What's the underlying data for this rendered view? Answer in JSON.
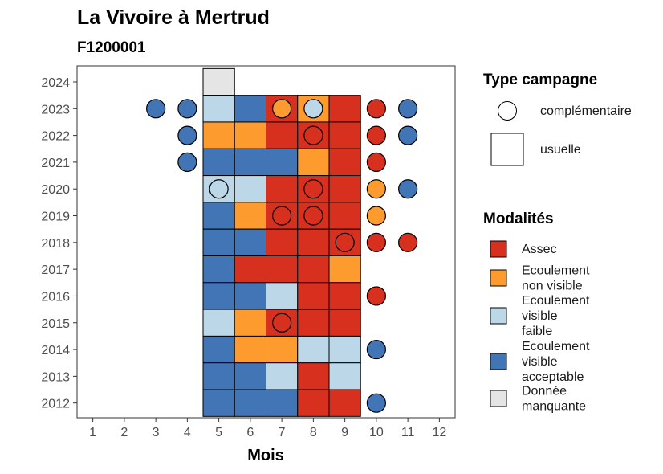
{
  "chart_data": {
    "type": "heatmap",
    "title": "La Vivoire à Mertrud",
    "subtitle": "F1200001",
    "xlabel": "Mois",
    "ylabel": "",
    "x_ticks": [
      1,
      2,
      3,
      4,
      5,
      6,
      7,
      8,
      9,
      10,
      11,
      12
    ],
    "y_ticks": [
      2012,
      2013,
      2014,
      2015,
      2016,
      2017,
      2018,
      2019,
      2020,
      2021,
      2022,
      2023,
      2024
    ],
    "xlim": [
      0.5,
      12.5
    ],
    "ylim": [
      2011.45,
      2024.6
    ],
    "grid": false,
    "colors": {
      "Assec": "#d7301f",
      "Ecoulement non visible": "#fd9b2f",
      "Ecoulement visible faible": "#bcd7e8",
      "Ecoulement visible acceptable": "#4275b6",
      "Donnée manquante": "#e5e5e5"
    },
    "legend_shape": {
      "title": "Type campagne",
      "items": [
        {
          "label": "complémentaire",
          "shape": "circle"
        },
        {
          "label": "usuelle",
          "shape": "square"
        }
      ]
    },
    "legend_color": {
      "title": "Modalités",
      "items": [
        {
          "key": "Assec",
          "lines": [
            "Assec"
          ]
        },
        {
          "key": "Ecoulement non visible",
          "lines": [
            "Ecoulement",
            "non visible"
          ]
        },
        {
          "key": "Ecoulement visible faible",
          "lines": [
            "Ecoulement",
            "visible",
            "faible"
          ]
        },
        {
          "key": "Ecoulement visible acceptable",
          "lines": [
            "Ecoulement",
            "visible",
            "acceptable"
          ]
        },
        {
          "key": "Donnée manquante",
          "lines": [
            "Donnée",
            "manquante"
          ]
        }
      ]
    },
    "usuelle": [
      {
        "year": 2024,
        "month": 5,
        "value": "Donnée manquante"
      },
      {
        "year": 2023,
        "month": 5,
        "value": "Ecoulement visible faible"
      },
      {
        "year": 2023,
        "month": 6,
        "value": "Ecoulement visible acceptable"
      },
      {
        "year": 2023,
        "month": 7,
        "value": "Assec"
      },
      {
        "year": 2023,
        "month": 8,
        "value": "Ecoulement non visible"
      },
      {
        "year": 2023,
        "month": 9,
        "value": "Assec"
      },
      {
        "year": 2022,
        "month": 5,
        "value": "Ecoulement non visible"
      },
      {
        "year": 2022,
        "month": 6,
        "value": "Ecoulement non visible"
      },
      {
        "year": 2022,
        "month": 7,
        "value": "Assec"
      },
      {
        "year": 2022,
        "month": 8,
        "value": "Assec"
      },
      {
        "year": 2022,
        "month": 9,
        "value": "Assec"
      },
      {
        "year": 2021,
        "month": 5,
        "value": "Ecoulement visible acceptable"
      },
      {
        "year": 2021,
        "month": 6,
        "value": "Ecoulement visible acceptable"
      },
      {
        "year": 2021,
        "month": 7,
        "value": "Ecoulement visible acceptable"
      },
      {
        "year": 2021,
        "month": 8,
        "value": "Ecoulement non visible"
      },
      {
        "year": 2021,
        "month": 9,
        "value": "Assec"
      },
      {
        "year": 2020,
        "month": 5,
        "value": "Ecoulement visible faible"
      },
      {
        "year": 2020,
        "month": 6,
        "value": "Ecoulement visible faible"
      },
      {
        "year": 2020,
        "month": 7,
        "value": "Assec"
      },
      {
        "year": 2020,
        "month": 8,
        "value": "Assec"
      },
      {
        "year": 2020,
        "month": 9,
        "value": "Assec"
      },
      {
        "year": 2019,
        "month": 5,
        "value": "Ecoulement visible acceptable"
      },
      {
        "year": 2019,
        "month": 6,
        "value": "Ecoulement non visible"
      },
      {
        "year": 2019,
        "month": 7,
        "value": "Assec"
      },
      {
        "year": 2019,
        "month": 8,
        "value": "Assec"
      },
      {
        "year": 2019,
        "month": 9,
        "value": "Assec"
      },
      {
        "year": 2018,
        "month": 5,
        "value": "Ecoulement visible acceptable"
      },
      {
        "year": 2018,
        "month": 6,
        "value": "Ecoulement visible acceptable"
      },
      {
        "year": 2018,
        "month": 7,
        "value": "Assec"
      },
      {
        "year": 2018,
        "month": 8,
        "value": "Assec"
      },
      {
        "year": 2018,
        "month": 9,
        "value": "Assec"
      },
      {
        "year": 2017,
        "month": 5,
        "value": "Ecoulement visible acceptable"
      },
      {
        "year": 2017,
        "month": 6,
        "value": "Assec"
      },
      {
        "year": 2017,
        "month": 7,
        "value": "Assec"
      },
      {
        "year": 2017,
        "month": 8,
        "value": "Assec"
      },
      {
        "year": 2017,
        "month": 9,
        "value": "Ecoulement non visible"
      },
      {
        "year": 2016,
        "month": 5,
        "value": "Ecoulement visible acceptable"
      },
      {
        "year": 2016,
        "month": 6,
        "value": "Ecoulement visible acceptable"
      },
      {
        "year": 2016,
        "month": 7,
        "value": "Ecoulement visible faible"
      },
      {
        "year": 2016,
        "month": 8,
        "value": "Assec"
      },
      {
        "year": 2016,
        "month": 9,
        "value": "Assec"
      },
      {
        "year": 2015,
        "month": 5,
        "value": "Ecoulement visible faible"
      },
      {
        "year": 2015,
        "month": 6,
        "value": "Ecoulement non visible"
      },
      {
        "year": 2015,
        "month": 7,
        "value": "Assec"
      },
      {
        "year": 2015,
        "month": 8,
        "value": "Assec"
      },
      {
        "year": 2015,
        "month": 9,
        "value": "Assec"
      },
      {
        "year": 2014,
        "month": 5,
        "value": "Ecoulement visible acceptable"
      },
      {
        "year": 2014,
        "month": 6,
        "value": "Ecoulement non visible"
      },
      {
        "year": 2014,
        "month": 7,
        "value": "Ecoulement non visible"
      },
      {
        "year": 2014,
        "month": 8,
        "value": "Ecoulement visible faible"
      },
      {
        "year": 2014,
        "month": 9,
        "value": "Ecoulement visible faible"
      },
      {
        "year": 2013,
        "month": 5,
        "value": "Ecoulement visible acceptable"
      },
      {
        "year": 2013,
        "month": 6,
        "value": "Ecoulement visible acceptable"
      },
      {
        "year": 2013,
        "month": 7,
        "value": "Ecoulement visible faible"
      },
      {
        "year": 2013,
        "month": 8,
        "value": "Assec"
      },
      {
        "year": 2013,
        "month": 9,
        "value": "Ecoulement visible faible"
      },
      {
        "year": 2012,
        "month": 5,
        "value": "Ecoulement visible acceptable"
      },
      {
        "year": 2012,
        "month": 6,
        "value": "Ecoulement visible acceptable"
      },
      {
        "year": 2012,
        "month": 7,
        "value": "Ecoulement visible acceptable"
      },
      {
        "year": 2012,
        "month": 8,
        "value": "Assec"
      },
      {
        "year": 2012,
        "month": 9,
        "value": "Assec"
      }
    ],
    "complementaire": [
      {
        "year": 2023,
        "month": 3,
        "value": "Ecoulement visible acceptable"
      },
      {
        "year": 2023,
        "month": 4,
        "value": "Ecoulement visible acceptable"
      },
      {
        "year": 2023,
        "month": 7,
        "value": "Ecoulement non visible"
      },
      {
        "year": 2023,
        "month": 8,
        "value": "Ecoulement visible faible"
      },
      {
        "year": 2023,
        "month": 10,
        "value": "Assec"
      },
      {
        "year": 2023,
        "month": 11,
        "value": "Ecoulement visible acceptable"
      },
      {
        "year": 2022,
        "month": 4,
        "value": "Ecoulement visible acceptable"
      },
      {
        "year": 2022,
        "month": 8,
        "value": "Assec"
      },
      {
        "year": 2022,
        "month": 10,
        "value": "Assec"
      },
      {
        "year": 2022,
        "month": 11,
        "value": "Ecoulement visible acceptable"
      },
      {
        "year": 2021,
        "month": 4,
        "value": "Ecoulement visible acceptable"
      },
      {
        "year": 2021,
        "month": 10,
        "value": "Assec"
      },
      {
        "year": 2020,
        "month": 5,
        "value": "Ecoulement visible faible"
      },
      {
        "year": 2020,
        "month": 8,
        "value": "Assec"
      },
      {
        "year": 2020,
        "month": 10,
        "value": "Ecoulement non visible"
      },
      {
        "year": 2020,
        "month": 11,
        "value": "Ecoulement visible acceptable"
      },
      {
        "year": 2019,
        "month": 7,
        "value": "Assec"
      },
      {
        "year": 2019,
        "month": 8,
        "value": "Assec"
      },
      {
        "year": 2019,
        "month": 10,
        "value": "Ecoulement non visible"
      },
      {
        "year": 2018,
        "month": 9,
        "value": "Assec"
      },
      {
        "year": 2018,
        "month": 10,
        "value": "Assec"
      },
      {
        "year": 2018,
        "month": 11,
        "value": "Assec"
      },
      {
        "year": 2016,
        "month": 10,
        "value": "Assec"
      },
      {
        "year": 2015,
        "month": 7,
        "value": "Assec"
      },
      {
        "year": 2014,
        "month": 10,
        "value": "Ecoulement visible acceptable"
      },
      {
        "year": 2012,
        "month": 10,
        "value": "Ecoulement visible acceptable"
      }
    ]
  }
}
